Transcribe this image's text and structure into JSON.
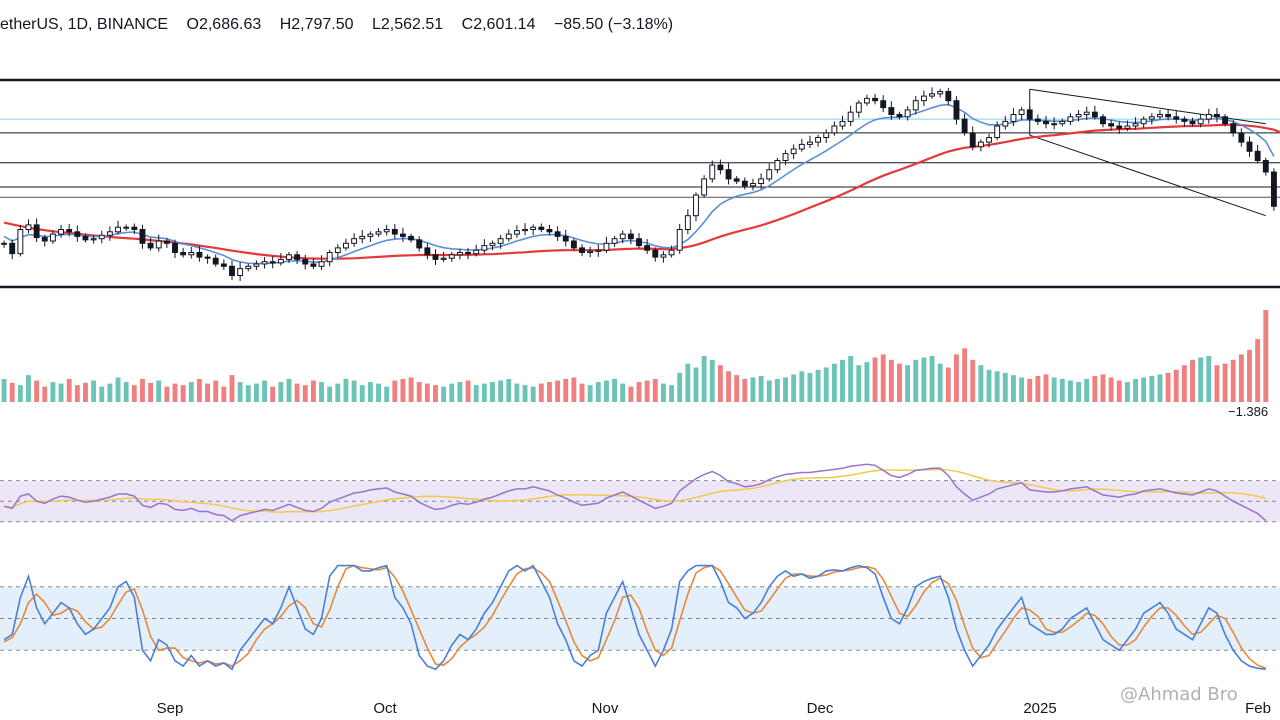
{
  "header": {
    "symbol": "etherUS, 1D, BINANCE",
    "open": "O2,686.63",
    "high": "H2,797.50",
    "low": "L2,562.51",
    "close": "C2,601.14",
    "change": "−85.50 (−3.18%)"
  },
  "watermark": "@Ahmad Bro",
  "colors": {
    "up": "#6cc4b6",
    "down": "#f08080",
    "candle": "#131722",
    "ema_fast": "#5b8fd9",
    "ema_slow": "#e5383b",
    "rsi": "#9575cd",
    "rsi_ma": "#f2c94c",
    "stoch_k": "#4a7fd6",
    "stoch_d": "#e8883a",
    "rsi_band": "#ece6f6",
    "stoch_band": "#e3f0fb"
  },
  "chart_data": {
    "type": "line",
    "x_tick_labels": [
      "Sep",
      "Oct",
      "Nov",
      "Dec",
      "2025",
      "Feb"
    ],
    "volume_label": "−1.386",
    "panels": [
      "price",
      "volume",
      "rsi",
      "stochastic"
    ],
    "grid": false,
    "closes": [
      2440,
      2395,
      2500,
      2520,
      2465,
      2450,
      2480,
      2500,
      2490,
      2470,
      2455,
      2460,
      2475,
      2490,
      2510,
      2510,
      2500,
      2440,
      2420,
      2450,
      2440,
      2400,
      2390,
      2400,
      2380,
      2375,
      2350,
      2340,
      2300,
      2330,
      2340,
      2350,
      2360,
      2355,
      2370,
      2390,
      2370,
      2350,
      2340,
      2360,
      2400,
      2420,
      2440,
      2460,
      2470,
      2480,
      2490,
      2500,
      2480,
      2470,
      2455,
      2420,
      2390,
      2370,
      2375,
      2390,
      2400,
      2395,
      2410,
      2430,
      2440,
      2460,
      2480,
      2495,
      2500,
      2510,
      2500,
      2490,
      2470,
      2450,
      2420,
      2400,
      2405,
      2410,
      2440,
      2460,
      2480,
      2460,
      2430,
      2410,
      2380,
      2390,
      2410,
      2500,
      2560,
      2650,
      2720,
      2780,
      2760,
      2720,
      2710,
      2690,
      2700,
      2720,
      2760,
      2800,
      2830,
      2850,
      2870,
      2880,
      2900,
      2920,
      2950,
      2970,
      3010,
      3050,
      3070,
      3060,
      3030,
      3000,
      2990,
      3020,
      3060,
      3080,
      3090,
      3100,
      3060,
      2980,
      2920,
      2860,
      2880,
      2900,
      2950,
      2970,
      3000,
      3020,
      2980,
      2970,
      2960,
      2960,
      2970,
      2990,
      3000,
      3010,
      2990,
      2960,
      2950,
      2940,
      2950,
      2960,
      2980,
      2990,
      3000,
      2990,
      2980,
      2970,
      2960,
      2980,
      3000,
      2990,
      2960,
      2920,
      2880,
      2840,
      2800,
      2750,
      2601
    ],
    "ema_fast": [
      2470,
      2450,
      2465,
      2478,
      2475,
      2469,
      2471,
      2477,
      2479,
      2477,
      2472,
      2469,
      2470,
      2474,
      2482,
      2487,
      2489,
      2478,
      2467,
      2464,
      2460,
      2448,
      2437,
      2430,
      2420,
      2411,
      2399,
      2387,
      2369,
      2359,
      2353,
      2352,
      2353,
      2354,
      2357,
      2363,
      2364,
      2362,
      2358,
      2358,
      2366,
      2377,
      2390,
      2404,
      2417,
      2429,
      2442,
      2453,
      2458,
      2461,
      2460,
      2453,
      2442,
      2430,
      2421,
      2416,
      2414,
      2411,
      2411,
      2414,
      2419,
      2427,
      2438,
      2450,
      2460,
      2470,
      2476,
      2478,
      2477,
      2473,
      2463,
      2452,
      2443,
      2437,
      2437,
      2441,
      2449,
      2452,
      2448,
      2441,
      2429,
      2422,
      2420,
      2434,
      2456,
      2491,
      2532,
      2578,
      2610,
      2630,
      2645,
      2653,
      2661,
      2672,
      2690,
      2713,
      2737,
      2761,
      2783,
      2802,
      2822,
      2842,
      2865,
      2887,
      2911,
      2937,
      2960,
      2977,
      2985,
      2988,
      2988,
      2993,
      3005,
      3017,
      3029,
      3040,
      3043,
      3029,
      3009,
      2982,
      2966,
      2955,
      2955,
      2958,
      2966,
      2976,
      2976,
      2975,
      2973,
      2971,
      2971,
      2974,
      2978,
      2983,
      2985,
      2981,
      2976,
      2969,
      2966,
      2965,
      2968,
      2972,
      2978,
      2980,
      2980,
      2978,
      2975,
      2976,
      2980,
      2982,
      2978,
      2969,
      2954,
      2935,
      2912,
      2883,
      2818
    ],
    "ema_slow": [
      2530,
      2522,
      2515,
      2508,
      2502,
      2497,
      2492,
      2488,
      2485,
      2481,
      2478,
      2474,
      2471,
      2468,
      2465,
      2462,
      2460,
      2457,
      2454,
      2450,
      2447,
      2443,
      2439,
      2435,
      2430,
      2425,
      2420,
      2414,
      2408,
      2403,
      2398,
      2393,
      2389,
      2385,
      2382,
      2379,
      2377,
      2375,
      2374,
      2373,
      2373,
      2373,
      2374,
      2375,
      2377,
      2379,
      2381,
      2383,
      2385,
      2387,
      2388,
      2389,
      2389,
      2389,
      2389,
      2389,
      2390,
      2390,
      2391,
      2392,
      2393,
      2395,
      2397,
      2399,
      2401,
      2404,
      2406,
      2408,
      2409,
      2410,
      2410,
      2410,
      2410,
      2410,
      2411,
      2413,
      2415,
      2416,
      2417,
      2417,
      2416,
      2415,
      2415,
      2419,
      2425,
      2433,
      2444,
      2457,
      2469,
      2480,
      2490,
      2499,
      2508,
      2518,
      2529,
      2541,
      2554,
      2567,
      2581,
      2595,
      2609,
      2623,
      2638,
      2653,
      2669,
      2686,
      2703,
      2719,
      2734,
      2747,
      2759,
      2772,
      2785,
      2799,
      2813,
      2827,
      2839,
      2848,
      2855,
      2859,
      2863,
      2868,
      2874,
      2880,
      2887,
      2894,
      2899,
      2903,
      2907,
      2910,
      2914,
      2918,
      2922,
      2926,
      2930,
      2932,
      2934,
      2936,
      2937,
      2938,
      2940,
      2942,
      2944,
      2946,
      2948,
      2949,
      2950,
      2951,
      2952,
      2954,
      2955,
      2955,
      2954,
      2951,
      2947,
      2941,
      2934,
      2919
    ],
    "volume": [
      30,
      25,
      22,
      35,
      28,
      20,
      26,
      24,
      30,
      22,
      25,
      28,
      20,
      24,
      32,
      26,
      22,
      30,
      25,
      28,
      20,
      24,
      22,
      26,
      30,
      24,
      28,
      20,
      35,
      26,
      22,
      24,
      28,
      20,
      26,
      30,
      24,
      22,
      28,
      26,
      20,
      24,
      30,
      28,
      22,
      26,
      24,
      20,
      28,
      30,
      32,
      26,
      24,
      22,
      20,
      24,
      26,
      28,
      22,
      24,
      26,
      28,
      30,
      24,
      22,
      20,
      24,
      26,
      28,
      30,
      32,
      24,
      22,
      26,
      28,
      30,
      24,
      20,
      26,
      28,
      30,
      24,
      22,
      38,
      50,
      45,
      60,
      55,
      48,
      40,
      35,
      30,
      32,
      34,
      28,
      30,
      32,
      36,
      40,
      38,
      42,
      45,
      50,
      55,
      60,
      48,
      52,
      58,
      62,
      55,
      50,
      48,
      55,
      58,
      60,
      50,
      45,
      62,
      70,
      55,
      48,
      42,
      40,
      38,
      35,
      32,
      30,
      34,
      36,
      32,
      30,
      28,
      26,
      30,
      34,
      36,
      32,
      28,
      26,
      30,
      32,
      34,
      36,
      38,
      42,
      48,
      55,
      58,
      60,
      48,
      50,
      55,
      62,
      68,
      82,
      120
    ],
    "rsi": [
      45,
      43,
      55,
      57,
      50,
      48,
      52,
      55,
      54,
      51,
      49,
      50,
      52,
      54,
      57,
      57,
      55,
      46,
      44,
      48,
      47,
      42,
      41,
      43,
      40,
      40,
      37,
      36,
      31,
      36,
      38,
      40,
      42,
      41,
      44,
      47,
      44,
      41,
      40,
      43,
      49,
      52,
      55,
      58,
      59,
      61,
      62,
      63,
      59,
      57,
      55,
      49,
      45,
      42,
      43,
      46,
      48,
      47,
      49,
      52,
      54,
      57,
      60,
      62,
      62,
      64,
      62,
      60,
      56,
      53,
      49,
      46,
      47,
      48,
      53,
      56,
      59,
      55,
      51,
      47,
      43,
      45,
      48,
      60,
      66,
      72,
      76,
      79,
      75,
      69,
      67,
      64,
      65,
      67,
      71,
      74,
      76,
      77,
      78,
      78,
      79,
      80,
      81,
      82,
      84,
      85,
      86,
      85,
      80,
      75,
      73,
      76,
      80,
      81,
      82,
      82,
      75,
      64,
      57,
      51,
      54,
      57,
      62,
      64,
      66,
      68,
      61,
      60,
      59,
      59,
      60,
      62,
      63,
      64,
      60,
      56,
      55,
      54,
      56,
      57,
      60,
      61,
      62,
      60,
      58,
      57,
      56,
      59,
      62,
      60,
      55,
      50,
      46,
      42,
      38,
      31
    ],
    "stoch_k": [
      30,
      35,
      70,
      90,
      60,
      45,
      55,
      65,
      60,
      45,
      35,
      40,
      50,
      60,
      80,
      85,
      70,
      20,
      10,
      30,
      25,
      10,
      5,
      15,
      5,
      10,
      5,
      8,
      2,
      20,
      30,
      40,
      50,
      45,
      60,
      80,
      60,
      40,
      35,
      50,
      90,
      100,
      100,
      100,
      95,
      95,
      98,
      100,
      70,
      60,
      45,
      15,
      5,
      2,
      10,
      25,
      35,
      30,
      40,
      55,
      65,
      80,
      95,
      100,
      95,
      100,
      85,
      70,
      45,
      30,
      10,
      5,
      15,
      20,
      55,
      70,
      85,
      60,
      35,
      20,
      5,
      20,
      40,
      85,
      95,
      100,
      100,
      100,
      85,
      65,
      60,
      50,
      55,
      65,
      80,
      90,
      95,
      90,
      92,
      88,
      90,
      95,
      96,
      95,
      98,
      100,
      98,
      92,
      70,
      50,
      45,
      60,
      80,
      85,
      88,
      90,
      70,
      40,
      20,
      5,
      15,
      25,
      40,
      50,
      60,
      70,
      45,
      40,
      35,
      35,
      40,
      50,
      55,
      60,
      45,
      30,
      25,
      20,
      30,
      40,
      55,
      60,
      65,
      55,
      40,
      35,
      30,
      45,
      60,
      55,
      35,
      20,
      10,
      5,
      3,
      2
    ],
    "stoch_d": [
      28,
      32,
      45,
      65,
      73,
      65,
      53,
      55,
      60,
      57,
      47,
      40,
      42,
      50,
      63,
      75,
      78,
      58,
      33,
      20,
      22,
      22,
      13,
      10,
      8,
      10,
      7,
      8,
      5,
      10,
      17,
      30,
      40,
      45,
      52,
      62,
      67,
      60,
      45,
      42,
      58,
      80,
      97,
      100,
      98,
      97,
      96,
      98,
      89,
      76,
      58,
      40,
      22,
      7,
      6,
      12,
      23,
      30,
      35,
      42,
      53,
      67,
      80,
      92,
      97,
      98,
      93,
      85,
      67,
      48,
      28,
      15,
      10,
      13,
      30,
      48,
      70,
      72,
      60,
      38,
      20,
      15,
      22,
      48,
      73,
      93,
      98,
      100,
      95,
      83,
      70,
      58,
      55,
      57,
      67,
      78,
      88,
      92,
      92,
      90,
      90,
      91,
      94,
      95,
      96,
      98,
      99,
      97,
      87,
      71,
      55,
      52,
      62,
      75,
      84,
      88,
      83,
      67,
      43,
      22,
      13,
      15,
      27,
      38,
      50,
      60,
      58,
      52,
      40,
      37,
      37,
      42,
      48,
      55,
      53,
      45,
      33,
      25,
      25,
      30,
      42,
      52,
      60,
      60,
      53,
      43,
      35,
      37,
      45,
      53,
      50,
      37,
      22,
      12,
      6,
      3
    ],
    "descending_channel": {
      "upper": {
        "from_index": 126,
        "from_value": 3110,
        "to_index": 155,
        "to_value": 2960
      },
      "lower": {
        "from_index": 126,
        "from_value": 2910,
        "to_index": 155,
        "to_value": 2560
      }
    },
    "horizontal_levels": [
      {
        "value": 2980,
        "color": "#7fd3e0"
      },
      {
        "value": 2920,
        "color": "#131722"
      },
      {
        "value": 2790,
        "color": "#131722"
      },
      {
        "value": 2685,
        "color": "#131722"
      },
      {
        "value": 2640,
        "color": "#555555"
      }
    ],
    "rsi_levels": [
      70,
      50,
      30
    ],
    "stoch_levels": [
      80,
      50,
      20
    ],
    "price_range": [
      2250,
      3150
    ],
    "rsi_range": [
      20,
      95
    ],
    "stoch_range": [
      -10,
      110
    ]
  }
}
